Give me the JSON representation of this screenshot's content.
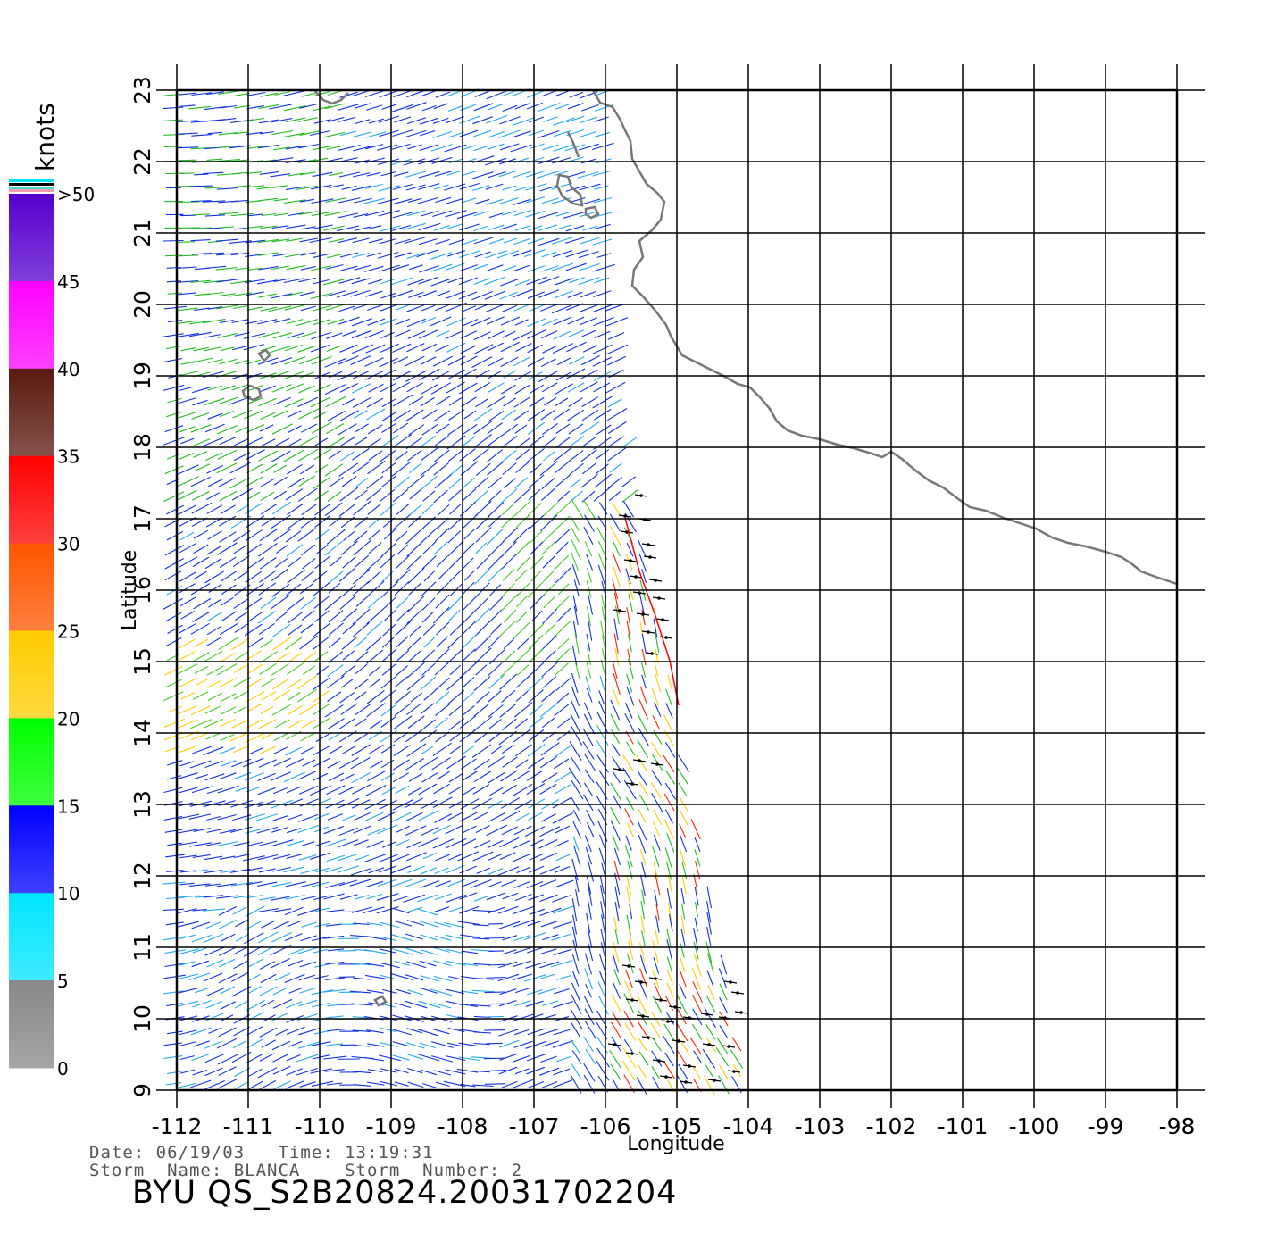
{
  "legend": {
    "unit": "knots",
    "labels": [
      "0",
      "5",
      "10",
      "15",
      "20",
      "25",
      "30",
      "35",
      "40",
      "45",
      ">50"
    ],
    "colors": [
      "#888888",
      "#00e5ff",
      "#0000ff",
      "#00ff00",
      "#ffcc00",
      "#ff5500",
      "#ff0000",
      "#5a1a10",
      "#ff00ff",
      "#5500cc"
    ]
  },
  "axes": {
    "x_label": "Longitude",
    "y_label": "Latitude",
    "x_ticks": [
      "-112",
      "-111",
      "-110",
      "-109",
      "-108",
      "-107",
      "-106",
      "-105",
      "-104",
      "-103",
      "-102",
      "-101",
      "-100",
      "-99",
      "-98"
    ],
    "y_ticks": [
      "9",
      "10",
      "11",
      "12",
      "13",
      "14",
      "15",
      "16",
      "17",
      "18",
      "19",
      "20",
      "21",
      "22",
      "23"
    ],
    "x_range": [
      -112,
      -98
    ],
    "y_range": [
      9,
      23
    ]
  },
  "info": {
    "date_line": "Date: 06/19/03   Time: 13:19:31",
    "storm_line": "Storm  Name: BLANCA    Storm  Number: 2",
    "title": "BYU  QS_S2B20824.20031702204"
  },
  "colors": {
    "coastline": "#777777",
    "grid": "#000000",
    "rain_flag": "#000000"
  }
}
